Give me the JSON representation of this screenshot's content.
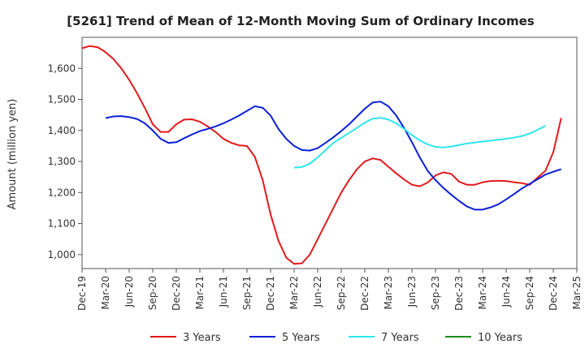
{
  "chart_data": {
    "type": "line",
    "title": "[5261]  Trend of Mean of 12-Month Moving Sum of Ordinary Incomes",
    "xlabel": "",
    "ylabel": "Amount (million yen)",
    "ylim": [
      955,
      1700
    ],
    "y_ticks": [
      1000,
      1100,
      1200,
      1300,
      1400,
      1500,
      1600
    ],
    "y_tick_labels": [
      "1,000",
      "1,100",
      "1,200",
      "1,300",
      "1,400",
      "1,500",
      "1,600"
    ],
    "x_tick_labels": [
      "Dec-19",
      "Mar-20",
      "Jun-20",
      "Sep-20",
      "Dec-20",
      "Mar-21",
      "Jun-21",
      "Sep-21",
      "Dec-21",
      "Mar-22",
      "Jun-22",
      "Sep-22",
      "Dec-22",
      "Mar-23",
      "Jun-23",
      "Sep-23",
      "Dec-23",
      "Mar-24",
      "Jun-24",
      "Sep-24",
      "Dec-24",
      "Mar-25"
    ],
    "x_months": 63,
    "series": [
      {
        "name": "3 Years",
        "color": "#e31a1c",
        "start_month": 0,
        "values": [
          1665,
          1672,
          1668,
          1652,
          1630,
          1600,
          1563,
          1520,
          1472,
          1420,
          1395,
          1395,
          1420,
          1435,
          1436,
          1428,
          1413,
          1395,
          1373,
          1360,
          1352,
          1350,
          1315,
          1240,
          1130,
          1045,
          990,
          970,
          972,
          1000,
          1050,
          1100,
          1150,
          1200,
          1240,
          1275,
          1300,
          1310,
          1305,
          1283,
          1262,
          1242,
          1225,
          1220,
          1232,
          1255,
          1265,
          1260,
          1235,
          1225,
          1225,
          1233,
          1237,
          1238,
          1237,
          1233,
          1230,
          1225,
          1248,
          1270,
          1330,
          1440
        ]
      },
      {
        "name": "5 Years",
        "color": "#0a1fd6",
        "start_month": 3,
        "values": [
          1440,
          1445,
          1446,
          1443,
          1437,
          1423,
          1400,
          1373,
          1360,
          1362,
          1375,
          1387,
          1398,
          1405,
          1413,
          1423,
          1435,
          1448,
          1463,
          1478,
          1473,
          1448,
          1405,
          1373,
          1350,
          1337,
          1335,
          1343,
          1360,
          1378,
          1398,
          1420,
          1445,
          1470,
          1490,
          1493,
          1478,
          1448,
          1408,
          1362,
          1313,
          1270,
          1240,
          1215,
          1193,
          1173,
          1155,
          1145,
          1145,
          1152,
          1162,
          1178,
          1195,
          1213,
          1228,
          1243,
          1258,
          1267,
          1275
        ]
      },
      {
        "name": "7 Years",
        "color": "#2ee6ee",
        "start_month": 27,
        "values": [
          1280,
          1282,
          1293,
          1313,
          1337,
          1360,
          1376,
          1392,
          1408,
          1425,
          1438,
          1441,
          1435,
          1423,
          1405,
          1385,
          1368,
          1355,
          1347,
          1345,
          1348,
          1353,
          1358,
          1361,
          1364,
          1367,
          1370,
          1373,
          1377,
          1382,
          1390,
          1402,
          1415
        ]
      },
      {
        "name": "10 Years",
        "color": "#1a8c1a",
        "start_month": 0,
        "values": []
      }
    ],
    "grid": false,
    "legend_position": "bottom"
  }
}
